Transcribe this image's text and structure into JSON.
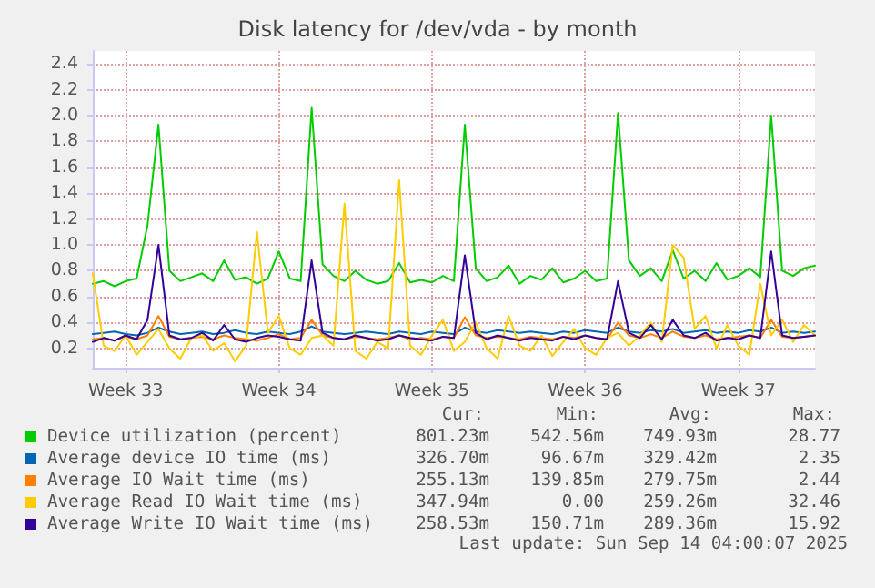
{
  "chart_data": {
    "type": "line",
    "title": "Disk latency for /dev/vda - by month",
    "categories": [
      null,
      null,
      null,
      "Week 33",
      null,
      null,
      null,
      null,
      null,
      null,
      null,
      null,
      null,
      null,
      null,
      null,
      null,
      "Week 34",
      null,
      null,
      null,
      null,
      null,
      null,
      null,
      null,
      null,
      null,
      null,
      null,
      null,
      "Week 35",
      null,
      null,
      null,
      null,
      null,
      null,
      null,
      null,
      null,
      null,
      null,
      null,
      null,
      "Week 36",
      null,
      null,
      null,
      null,
      null,
      null,
      null,
      null,
      null,
      null,
      null,
      null,
      null,
      "Week 37",
      null,
      null,
      null,
      null,
      null,
      null,
      null
    ],
    "series": [
      {
        "name": "Device utilization (percent)",
        "color": "#00cc00",
        "values": [
          0.7,
          0.72,
          0.68,
          0.72,
          0.74,
          1.15,
          1.93,
          0.8,
          0.72,
          0.75,
          0.78,
          0.72,
          0.88,
          0.73,
          0.75,
          0.7,
          0.74,
          0.95,
          0.74,
          0.72,
          2.06,
          0.85,
          0.76,
          0.72,
          0.8,
          0.73,
          0.7,
          0.72,
          0.86,
          0.71,
          0.73,
          0.71,
          0.76,
          0.72,
          1.93,
          0.82,
          0.72,
          0.75,
          0.84,
          0.7,
          0.76,
          0.73,
          0.82,
          0.71,
          0.74,
          0.8,
          0.72,
          0.74,
          2.02,
          0.88,
          0.76,
          0.82,
          0.72,
          0.96,
          0.74,
          0.8,
          0.72,
          0.86,
          0.73,
          0.76,
          0.82,
          0.75,
          2.0,
          0.8,
          0.76,
          0.82,
          0.84
        ]
      },
      {
        "name": "Average device IO time (ms)",
        "color": "#0066b3",
        "values": [
          0.31,
          0.32,
          0.33,
          0.31,
          0.3,
          0.32,
          0.36,
          0.33,
          0.31,
          0.32,
          0.33,
          0.31,
          0.32,
          0.34,
          0.32,
          0.31,
          0.33,
          0.32,
          0.31,
          0.33,
          0.37,
          0.33,
          0.32,
          0.31,
          0.32,
          0.33,
          0.32,
          0.31,
          0.33,
          0.32,
          0.31,
          0.33,
          0.32,
          0.31,
          0.36,
          0.33,
          0.32,
          0.34,
          0.33,
          0.32,
          0.33,
          0.32,
          0.31,
          0.33,
          0.32,
          0.34,
          0.33,
          0.32,
          0.36,
          0.33,
          0.32,
          0.34,
          0.33,
          0.35,
          0.32,
          0.33,
          0.34,
          0.32,
          0.33,
          0.32,
          0.34,
          0.33,
          0.36,
          0.32,
          0.33,
          0.32,
          0.33
        ]
      },
      {
        "name": "Average IO Wait time (ms)",
        "color": "#ff8000",
        "values": [
          0.27,
          0.28,
          0.26,
          0.29,
          0.27,
          0.3,
          0.45,
          0.29,
          0.27,
          0.28,
          0.29,
          0.27,
          0.3,
          0.28,
          0.27,
          0.26,
          0.28,
          0.31,
          0.27,
          0.28,
          0.42,
          0.3,
          0.28,
          0.27,
          0.29,
          0.28,
          0.27,
          0.28,
          0.3,
          0.27,
          0.28,
          0.27,
          0.29,
          0.28,
          0.44,
          0.3,
          0.28,
          0.29,
          0.28,
          0.27,
          0.29,
          0.28,
          0.27,
          0.29,
          0.28,
          0.3,
          0.28,
          0.27,
          0.4,
          0.3,
          0.28,
          0.31,
          0.28,
          0.33,
          0.29,
          0.28,
          0.3,
          0.27,
          0.28,
          0.29,
          0.3,
          0.28,
          0.42,
          0.29,
          0.28,
          0.29,
          0.3
        ]
      },
      {
        "name": "Average Read IO Wait time (ms)",
        "color": "#ffcc00",
        "values": [
          0.78,
          0.22,
          0.18,
          0.3,
          0.15,
          0.25,
          0.35,
          0.2,
          0.12,
          0.28,
          0.3,
          0.18,
          0.24,
          0.1,
          0.22,
          1.1,
          0.32,
          0.45,
          0.2,
          0.15,
          0.28,
          0.3,
          0.22,
          1.32,
          0.18,
          0.12,
          0.25,
          0.2,
          1.5,
          0.22,
          0.15,
          0.3,
          0.42,
          0.18,
          0.25,
          0.4,
          0.2,
          0.12,
          0.45,
          0.22,
          0.18,
          0.3,
          0.14,
          0.25,
          0.35,
          0.2,
          0.15,
          0.28,
          0.32,
          0.22,
          0.3,
          0.4,
          0.25,
          1.0,
          0.9,
          0.35,
          0.45,
          0.2,
          0.38,
          0.22,
          0.15,
          0.7,
          0.3,
          0.42,
          0.25,
          0.38,
          0.3
        ]
      },
      {
        "name": "Average Write IO Wait time (ms)",
        "color": "#330099",
        "values": [
          0.25,
          0.28,
          0.26,
          0.3,
          0.27,
          0.42,
          1.0,
          0.3,
          0.27,
          0.28,
          0.32,
          0.26,
          0.38,
          0.27,
          0.25,
          0.28,
          0.3,
          0.29,
          0.27,
          0.26,
          0.88,
          0.32,
          0.28,
          0.27,
          0.3,
          0.28,
          0.26,
          0.27,
          0.3,
          0.28,
          0.27,
          0.26,
          0.29,
          0.28,
          0.92,
          0.32,
          0.27,
          0.3,
          0.28,
          0.26,
          0.28,
          0.27,
          0.26,
          0.29,
          0.27,
          0.3,
          0.28,
          0.27,
          0.72,
          0.32,
          0.28,
          0.38,
          0.27,
          0.42,
          0.3,
          0.28,
          0.32,
          0.26,
          0.28,
          0.27,
          0.3,
          0.28,
          0.95,
          0.3,
          0.28,
          0.29,
          0.3
        ]
      }
    ],
    "ylim": [
      0.05,
      2.5
    ],
    "yticks": [
      0.2,
      0.4,
      0.6,
      0.8,
      {
        "value": 1,
        "label": "1.0"
      },
      1.2,
      1.4,
      1.6,
      1.8,
      {
        "value": 2,
        "label": "2.0"
      },
      2.2,
      2.4
    ],
    "grid": true,
    "legend": "bottom",
    "marker": "none",
    "line_style": "solid",
    "annotations": [
      "Cur: Min: Avg: Max:",
      "801.23m 542.56m 749.93m 28.77",
      "326.70m 96.67m 329.42m 2.35",
      "255.13m 139.85m 279.75m 2.44",
      "347.94m 0.00 259.26m 32.46",
      "258.53m 150.71m 289.36m 15.92",
      "Last update: Sun Sep 14 04:00:07 2025"
    ]
  }
}
